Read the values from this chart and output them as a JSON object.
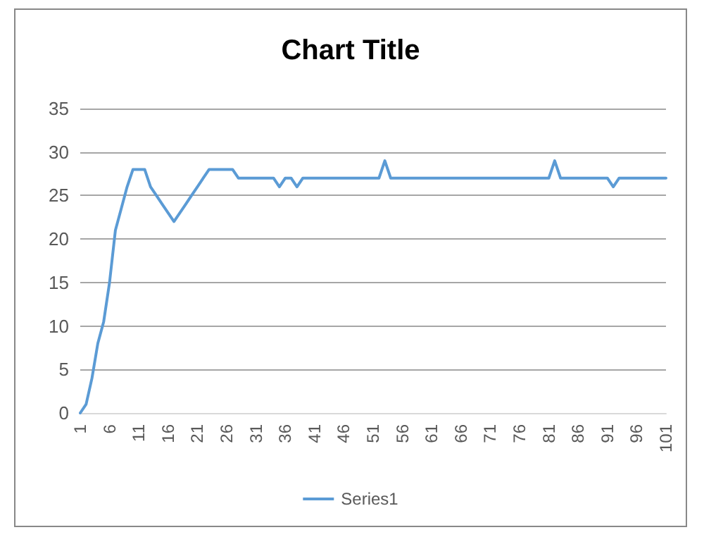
{
  "chart_data": {
    "type": "line",
    "title": "Chart Title",
    "categories": [
      "1",
      null,
      null,
      null,
      null,
      "6",
      null,
      null,
      null,
      null,
      "11",
      null,
      null,
      null,
      null,
      "16",
      null,
      null,
      null,
      null,
      "21",
      null,
      null,
      null,
      null,
      "26",
      null,
      null,
      null,
      null,
      "31",
      null,
      null,
      null,
      null,
      "36",
      null,
      null,
      null,
      null,
      "41",
      null,
      null,
      null,
      null,
      "46",
      null,
      null,
      null,
      null,
      "51",
      null,
      null,
      null,
      null,
      "56",
      null,
      null,
      null,
      null,
      "61",
      null,
      null,
      null,
      null,
      "66",
      null,
      null,
      null,
      null,
      "71",
      null,
      null,
      null,
      null,
      "76",
      null,
      null,
      null,
      null,
      "81",
      null,
      null,
      null,
      null,
      "86",
      null,
      null,
      null,
      null,
      "91",
      null,
      null,
      null,
      null,
      "96",
      null,
      null,
      null,
      null,
      "101"
    ],
    "series": [
      {
        "name": "Series1",
        "color": "#5b9bd5",
        "values": [
          0,
          1,
          4,
          8,
          10.5,
          15,
          21,
          23.5,
          26,
          28,
          28,
          28,
          26,
          25,
          24,
          23,
          22,
          23,
          24,
          25,
          26,
          27,
          28,
          28,
          28,
          28,
          28,
          27,
          27,
          27,
          27,
          27,
          27,
          27,
          26,
          27,
          27,
          26,
          27,
          27,
          27,
          27,
          27,
          27,
          27,
          27,
          27,
          27,
          27,
          27,
          27,
          27,
          29,
          27,
          27,
          27,
          27,
          27,
          27,
          27,
          27,
          27,
          27,
          27,
          27,
          27,
          27,
          27,
          27,
          27,
          27,
          27,
          27,
          27,
          27,
          27,
          27,
          27,
          27,
          27,
          27,
          29,
          27,
          27,
          27,
          27,
          27,
          27,
          27,
          27,
          27,
          26,
          27,
          27,
          27,
          27,
          27,
          27,
          27,
          27,
          27
        ]
      }
    ],
    "ylim": [
      0,
      35
    ],
    "yticks": [
      0,
      5,
      10,
      15,
      20,
      25,
      30,
      35
    ],
    "grid": "y",
    "legend": "bottom",
    "marker": "none",
    "line_style": "solid"
  }
}
